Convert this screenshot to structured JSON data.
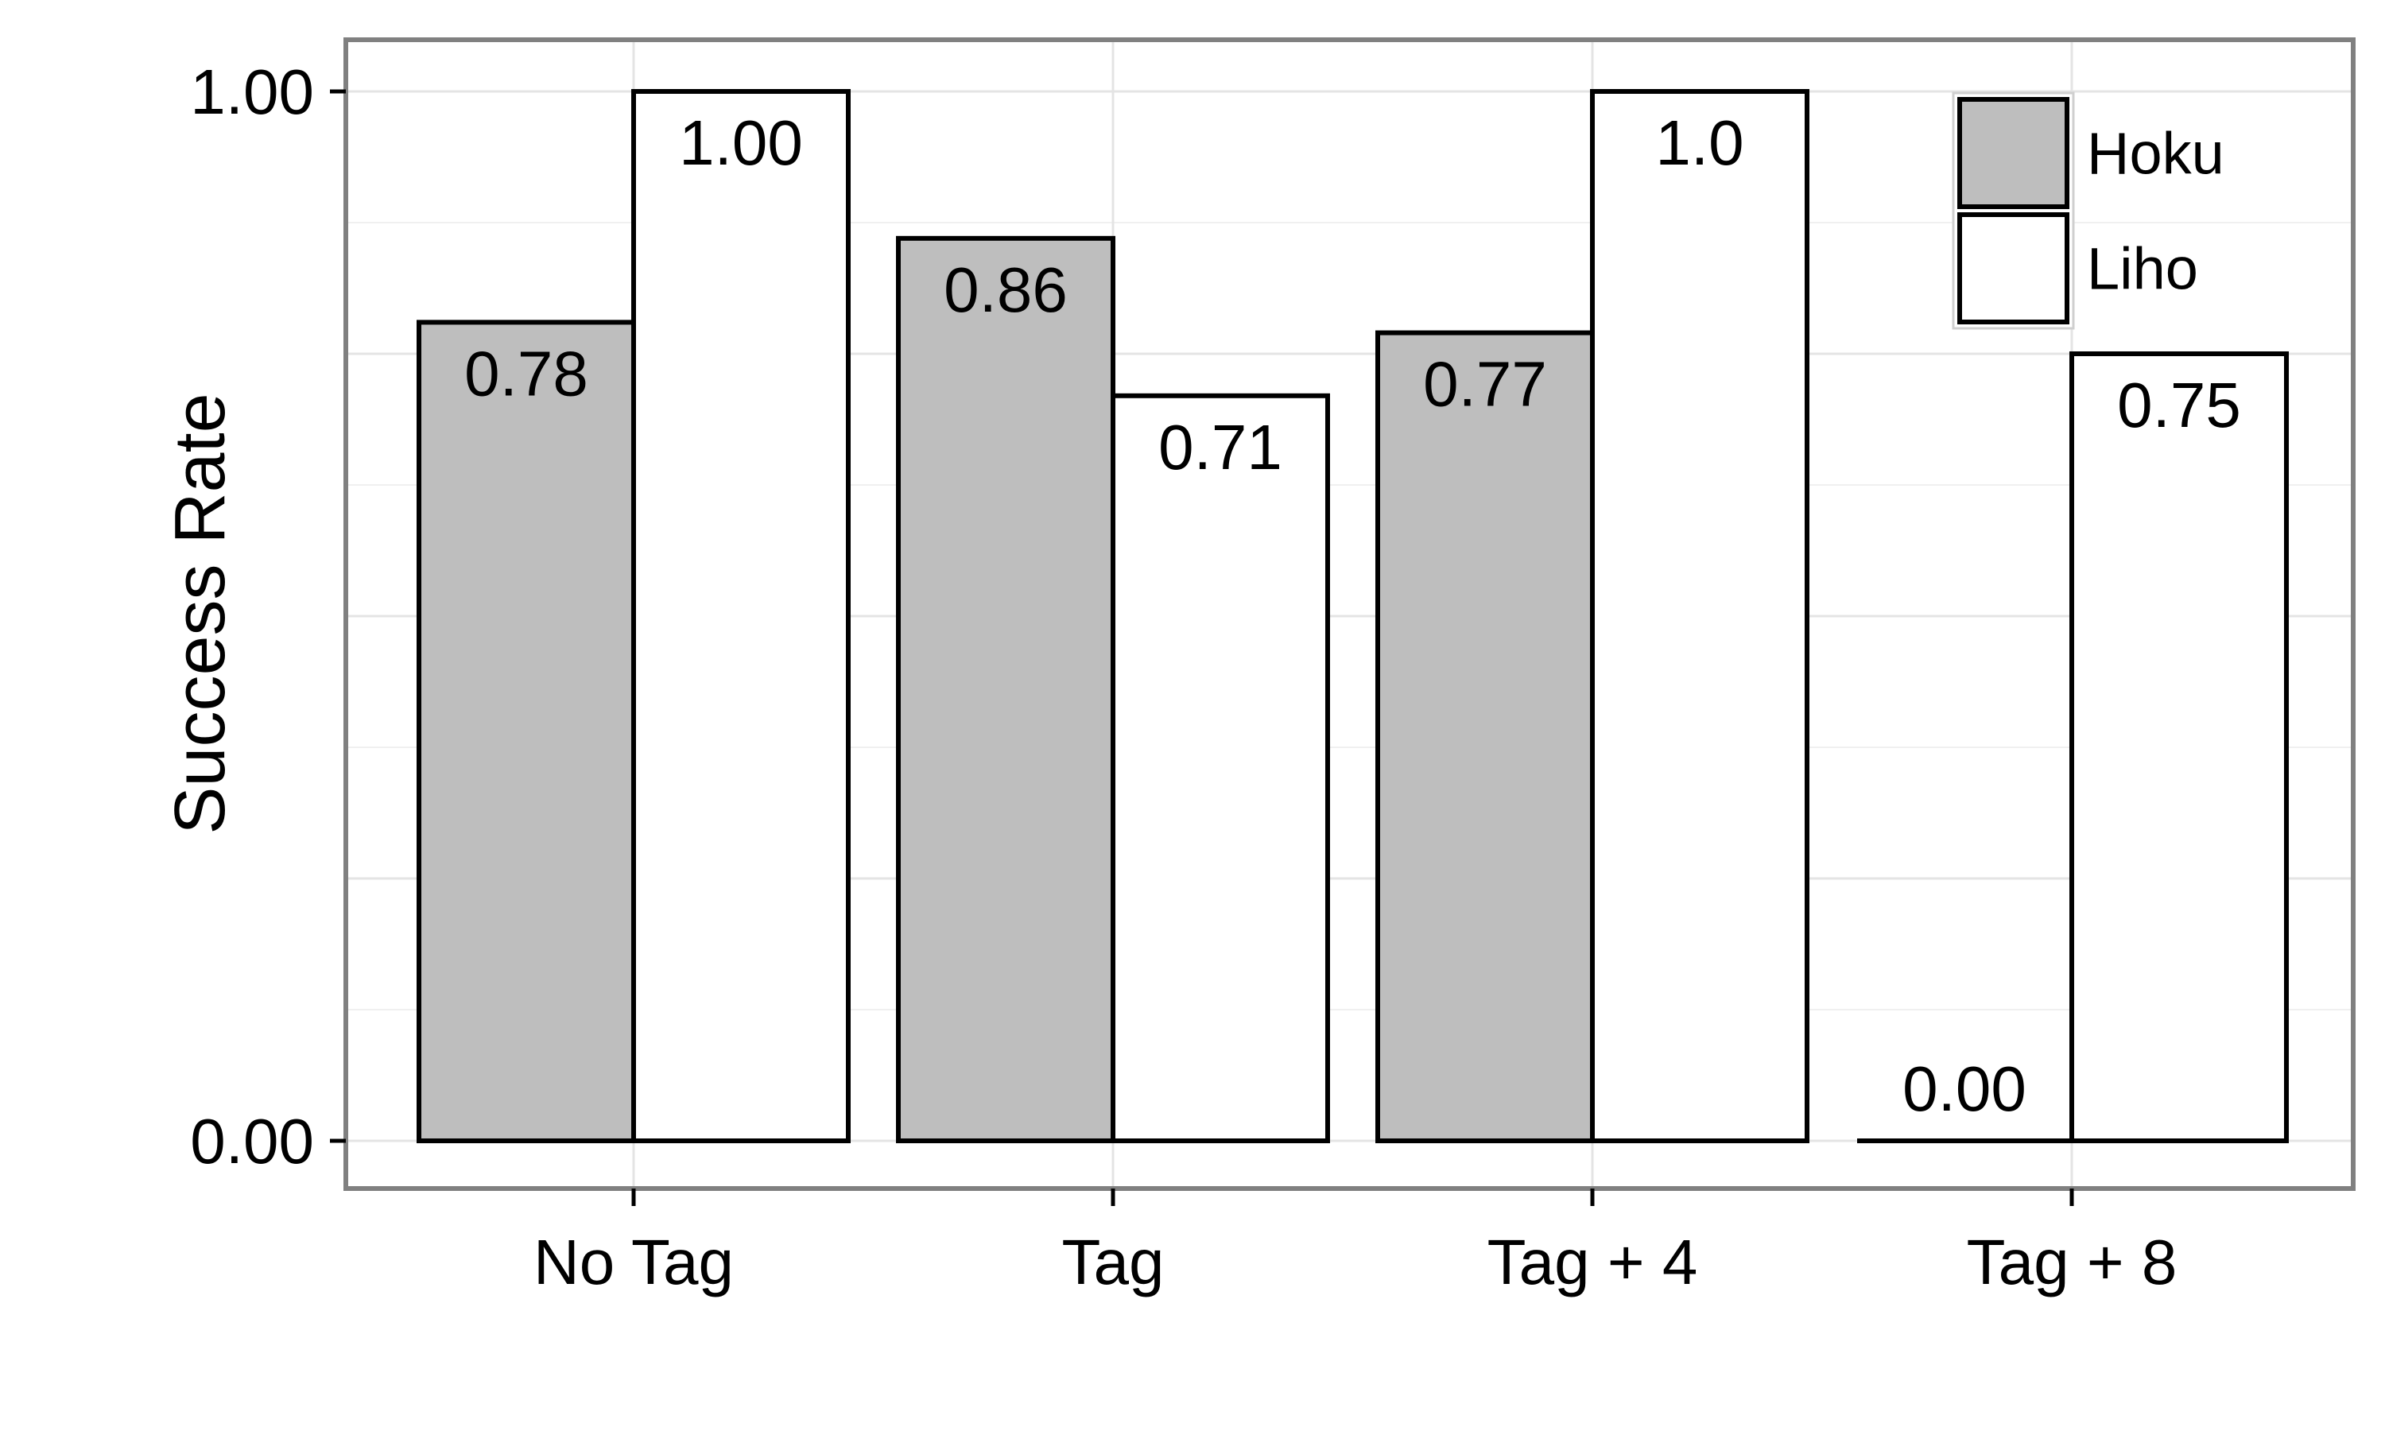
{
  "chart_data": {
    "type": "bar",
    "title": "",
    "xlabel": "",
    "ylabel": "Success Rate",
    "categories": [
      "No Tag",
      "Tag",
      "Tag + 4",
      "Tag + 8"
    ],
    "series": [
      {
        "name": "Hoku",
        "values": [
          0.78,
          0.86,
          0.77,
          0.0
        ],
        "labels": [
          "0.78",
          "0.86",
          "0.77",
          "0.00"
        ],
        "color": "#bebebe"
      },
      {
        "name": "Liho",
        "values": [
          1.0,
          0.71,
          1.0,
          0.75
        ],
        "labels": [
          "1.00",
          "0.71",
          "1.0",
          "0.75"
        ],
        "color": "#ffffff"
      }
    ],
    "ylim": [
      0,
      1
    ],
    "yticks": [
      0,
      1
    ],
    "ytick_labels": [
      "0.00",
      "1.00"
    ],
    "grid": true,
    "legend_position": "top-right",
    "colors": {
      "panel_border": "#808080",
      "grid": "#e4e4e4",
      "bar_stroke": "#000000"
    }
  }
}
